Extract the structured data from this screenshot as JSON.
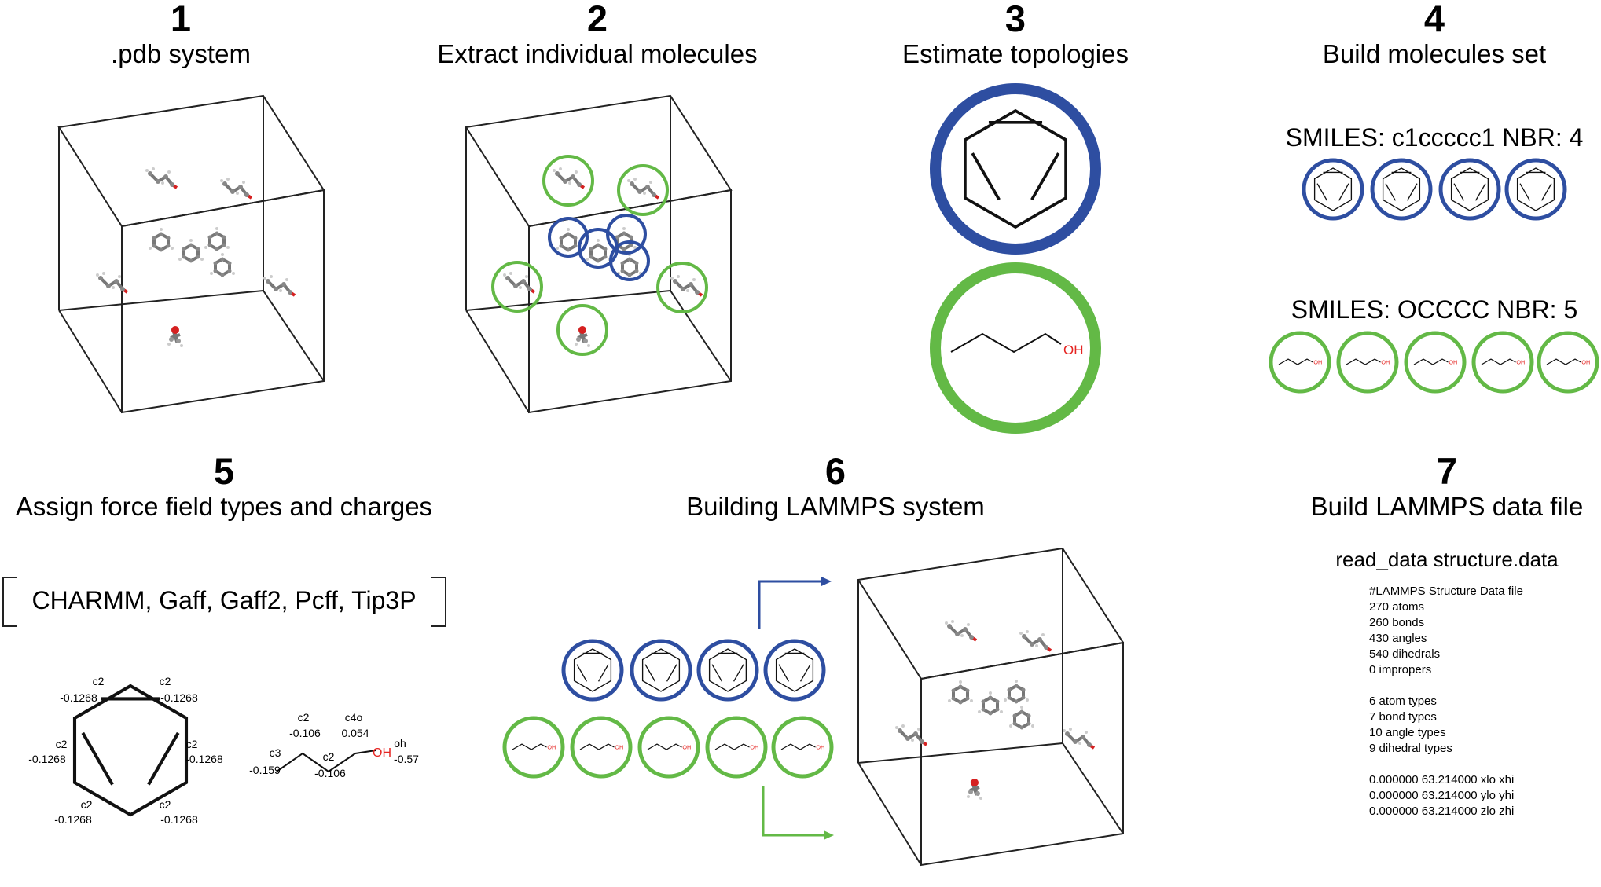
{
  "steps": [
    {
      "num": "1",
      "title": ".pdb system"
    },
    {
      "num": "2",
      "title": "Extract individual molecules"
    },
    {
      "num": "3",
      "title": "Estimate topologies"
    },
    {
      "num": "4",
      "title": "Build molecules set"
    },
    {
      "num": "5",
      "title": "Assign force field types and charges"
    },
    {
      "num": "6",
      "title": "Building LAMMPS system"
    },
    {
      "num": "7",
      "title": "Build LAMMPS data file"
    }
  ],
  "topology": {
    "oh_label": "OH"
  },
  "molecule_sets": [
    {
      "label": "SMILES: c1ccccc1 NBR: 4",
      "count": 4,
      "color": "#2e4ea1"
    },
    {
      "label": "SMILES: OCCCC NBR: 5",
      "count": 5,
      "color": "#63b946"
    }
  ],
  "force_fields": "CHARMM, Gaff, Gaff2, Pcff, Tip3P",
  "benzene_atoms": [
    {
      "type": "c2",
      "charge": "-0.1268"
    },
    {
      "type": "c2",
      "charge": "-0.1268"
    },
    {
      "type": "c2",
      "charge": "-0.1268"
    },
    {
      "type": "c2",
      "charge": "-0.1268"
    },
    {
      "type": "c2",
      "charge": "-0.1268"
    },
    {
      "type": "c2",
      "charge": "-0.1268"
    }
  ],
  "butanol_atoms": [
    {
      "type": "c3",
      "charge": "-0.159"
    },
    {
      "type": "c2",
      "charge": "-0.106"
    },
    {
      "type": "c2",
      "charge": "-0.106"
    },
    {
      "type": "c4o",
      "charge": "0.054"
    },
    {
      "type": "oh",
      "charge": "-0.57"
    }
  ],
  "butanol_oh_label": "OH",
  "read_data": "read_data structure.data",
  "data_file_lines": [
    "#LAMMPS Structure Data file",
    "270 atoms",
    "260 bonds",
    "430 angles",
    "540 dihedrals",
    "0 impropers",
    "",
    "6 atom types",
    "7 bond types",
    "10 angle types",
    "9 dihedral types",
    "",
    "0.000000 63.214000 xlo xhi",
    "0.000000 63.214000 ylo yhi",
    "0.000000 63.214000 zlo zhi"
  ],
  "colors": {
    "blue": "#2e4ea1",
    "green": "#63b946",
    "oxygen": "#e52421"
  }
}
